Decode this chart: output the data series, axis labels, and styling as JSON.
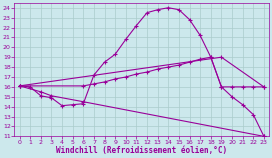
{
  "xlabel": "Windchill (Refroidissement éolien,°C)",
  "xlim": [
    -0.5,
    23.5
  ],
  "ylim": [
    11,
    24.5
  ],
  "xticks": [
    0,
    1,
    2,
    3,
    4,
    5,
    6,
    7,
    8,
    9,
    10,
    11,
    12,
    13,
    14,
    15,
    16,
    17,
    18,
    19,
    20,
    21,
    22,
    23
  ],
  "yticks": [
    11,
    12,
    13,
    14,
    15,
    16,
    17,
    18,
    19,
    20,
    21,
    22,
    23,
    24
  ],
  "bg_color": "#cce8ec",
  "line_color": "#990099",
  "grid_color": "#aacccc",
  "lines": [
    {
      "x": [
        0,
        1,
        2,
        3,
        4,
        5,
        6,
        7,
        8,
        9,
        10,
        11,
        12,
        13,
        14,
        15,
        16,
        17,
        18,
        19,
        20,
        21,
        22,
        23
      ],
      "y": [
        16.1,
        16.0,
        15.1,
        14.9,
        14.1,
        14.2,
        14.3,
        17.2,
        18.5,
        19.3,
        20.8,
        22.2,
        23.5,
        23.8,
        24.0,
        23.8,
        22.8,
        21.2,
        19.0,
        16.0,
        15.0,
        14.2,
        13.2,
        11.0
      ]
    },
    {
      "x": [
        0,
        6,
        7,
        8,
        9,
        10,
        11,
        12,
        13,
        14,
        15,
        16,
        17,
        18,
        19,
        20,
        21,
        22,
        23
      ],
      "y": [
        16.1,
        16.1,
        16.3,
        16.5,
        16.8,
        17.0,
        17.3,
        17.5,
        17.8,
        18.0,
        18.2,
        18.5,
        18.8,
        19.0,
        16.0,
        16.0,
        16.0,
        16.0,
        16.0
      ]
    },
    {
      "x": [
        0,
        2,
        3,
        6,
        23
      ],
      "y": [
        16.1,
        15.5,
        15.1,
        14.5,
        11.0
      ]
    },
    {
      "x": [
        0,
        19,
        23
      ],
      "y": [
        16.1,
        19.0,
        16.0
      ]
    }
  ]
}
